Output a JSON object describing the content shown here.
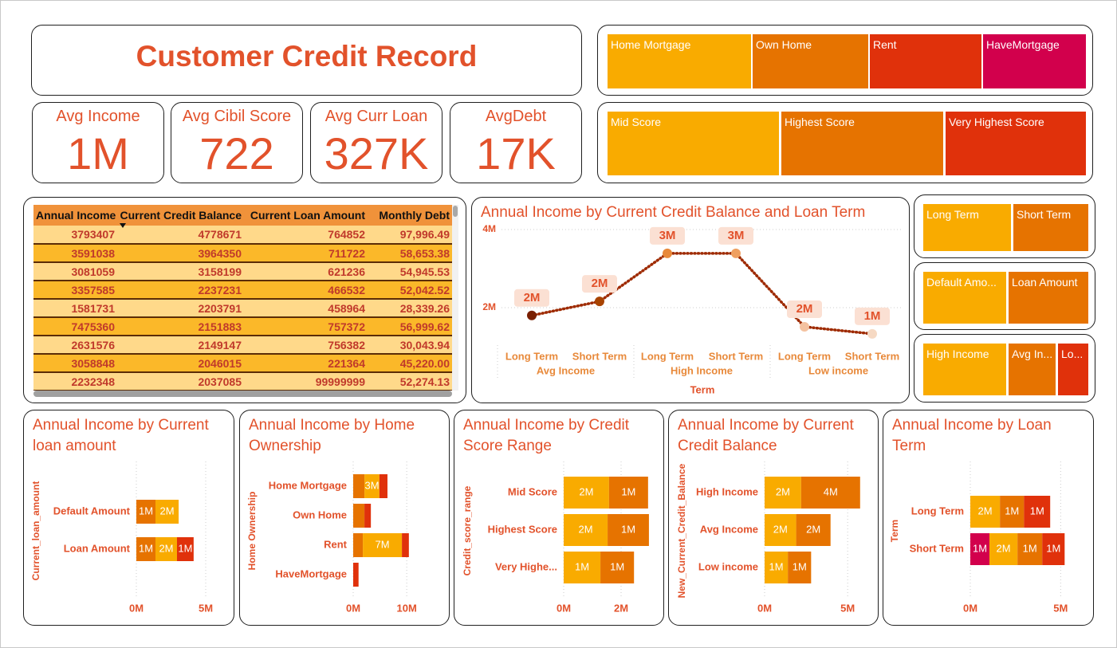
{
  "title": "Customer Credit Record",
  "kpis": [
    {
      "label": "Avg Income",
      "value": "1M"
    },
    {
      "label": "Avg Cibil Score",
      "value": "722"
    },
    {
      "label": "Avg Curr Loan",
      "value": "327K"
    },
    {
      "label": "AvgDebt",
      "value": "17K"
    }
  ],
  "slicers": [
    {
      "items": [
        {
          "label": "Home Mortgage",
          "color": "#f9ab00"
        },
        {
          "label": "Own Home",
          "color": "#e67300"
        },
        {
          "label": "Rent",
          "color": "#e0310b"
        },
        {
          "label": "HaveMortgage",
          "color": "#d2004c"
        }
      ]
    },
    {
      "items": [
        {
          "label": "Mid Score",
          "color": "#f9ab00"
        },
        {
          "label": "Highest Score",
          "color": "#e67300"
        },
        {
          "label": "Very Highest Score",
          "color": "#e0310b"
        }
      ]
    },
    {
      "items": [
        {
          "label": "Long Term",
          "color": "#f9ab00"
        },
        {
          "label": "Short Term",
          "color": "#e67300"
        }
      ]
    },
    {
      "items": [
        {
          "label": "Default Amo...",
          "color": "#f9ab00"
        },
        {
          "label": "Loan Amount",
          "color": "#e67300"
        }
      ]
    },
    {
      "items": [
        {
          "label": "High Income",
          "color": "#f9ab00"
        },
        {
          "label": "Avg In...",
          "color": "#e67300"
        },
        {
          "label": "Lo...",
          "color": "#e0310b"
        }
      ]
    }
  ],
  "table": {
    "columns": [
      "Annual Income",
      "Current Credit Balance",
      "Current Loan Amount",
      "Monthly Debt"
    ],
    "rows": [
      [
        "3793407",
        "4778671",
        "764852",
        "97,996.49"
      ],
      [
        "3591038",
        "3964350",
        "711722",
        "58,653.38"
      ],
      [
        "3081059",
        "3158199",
        "621236",
        "54,945.53"
      ],
      [
        "3357585",
        "2237231",
        "466532",
        "52,042.52"
      ],
      [
        "1581731",
        "2203791",
        "458964",
        "28,339.26"
      ],
      [
        "7475360",
        "2151883",
        "757372",
        "56,999.62"
      ],
      [
        "2631576",
        "2149147",
        "756382",
        "30,043.94"
      ],
      [
        "3058848",
        "2046015",
        "221364",
        "45,220.00"
      ],
      [
        "2232348",
        "2037085",
        "99999999",
        "52,274.13"
      ]
    ]
  },
  "chart_data": [
    {
      "type": "line",
      "title": "Annual Income by Current Credit Balance and Loan Term",
      "categories": [
        "Long Term",
        "Short Term",
        "Long Term",
        "Short Term",
        "Long Term",
        "Short Term"
      ],
      "category_groups": [
        "Avg Income",
        "High Income",
        "Low income"
      ],
      "x_label": "Term",
      "values": [
        1800000,
        2160000,
        3390000,
        3390000,
        1510000,
        1330000
      ],
      "value_labels": [
        "2M",
        "2M",
        "3M",
        "3M",
        "2M",
        "1M"
      ],
      "color": "#9e2a00",
      "point_colors": [
        "#7a1f00",
        "#a84300",
        "#e8893a",
        "#efa060",
        "#f4c2a0",
        "#f6d9c3"
      ],
      "ylim": [
        1000000,
        4000000
      ],
      "yticks": [
        {
          "value": 2000000,
          "label": "2M"
        },
        {
          "value": 4000000,
          "label": "4M"
        }
      ],
      "grid": true
    },
    {
      "type": "bar",
      "orientation": "horizontal",
      "stacked": true,
      "title": "Annual Income by Current loan amount",
      "y_label": "Current_loan_amount",
      "categories": [
        "Default Amount",
        "Loan Amount"
      ],
      "series": [
        {
          "color": "#e67300",
          "values": [
            1380000,
            1380000
          ],
          "value_labels": [
            "1M",
            "1M"
          ]
        },
        {
          "color": "#f9ab00",
          "values": [
            1670000,
            1550000
          ],
          "value_labels": [
            "2M",
            "2M"
          ]
        },
        {
          "color": "#e0310b",
          "values": [
            null,
            1200000
          ],
          "value_labels": [
            null,
            "1M"
          ]
        }
      ],
      "xlim": [
        0,
        5000000
      ],
      "xticks": [
        {
          "value": 0,
          "label": "0M"
        },
        {
          "value": 5000000,
          "label": "5M"
        }
      ],
      "grid": true
    },
    {
      "type": "bar",
      "orientation": "horizontal",
      "stacked": true,
      "title": "Annual Income by Home Ownership",
      "y_label": "Home Ownership",
      "categories": [
        "Home Mortgage",
        "Own Home",
        "Rent",
        "HaveMortgage"
      ],
      "series": [
        {
          "color": "#e67300",
          "values": [
            2100000,
            2100000,
            1800000,
            null
          ]
        },
        {
          "color": "#f9ab00",
          "values": [
            2800000,
            null,
            7300000,
            null
          ],
          "value_labels": [
            "3M",
            null,
            "7M",
            null
          ]
        },
        {
          "color": "#e0310b",
          "values": [
            1500000,
            1200000,
            1300000,
            1000000
          ]
        }
      ],
      "xlim": [
        0,
        14000000
      ],
      "xticks": [
        {
          "value": 0,
          "label": "0M"
        },
        {
          "value": 10000000,
          "label": "10M"
        }
      ],
      "grid": true
    },
    {
      "type": "bar",
      "orientation": "horizontal",
      "stacked": true,
      "title": "Annual Income by Credit Score Range",
      "y_label": "Credit_score_range",
      "categories": [
        "Mid Score",
        "Highest Score",
        "Very Highe..."
      ],
      "series": [
        {
          "color": "#f9ab00",
          "values": [
            1580000,
            1530000,
            1280000
          ],
          "value_labels": [
            "2M",
            "2M",
            "1M"
          ]
        },
        {
          "color": "#e67300",
          "values": [
            1360000,
            1440000,
            1170000
          ],
          "value_labels": [
            "1M",
            "1M",
            "1M"
          ]
        }
      ],
      "xlim": [
        0,
        3000000
      ],
      "xticks": [
        {
          "value": 0,
          "label": "0M"
        },
        {
          "value": 2000000,
          "label": "2M"
        }
      ],
      "grid": true
    },
    {
      "type": "bar",
      "orientation": "horizontal",
      "stacked": true,
      "title": "Annual Income by Current Credit Balance",
      "y_label": "New_Current_Credit_Balance",
      "categories": [
        "High Income",
        "Avg Income",
        "Low income"
      ],
      "series": [
        {
          "color": "#f9ab00",
          "values": [
            2200000,
            1900000,
            1400000
          ],
          "value_labels": [
            "2M",
            "2M",
            "1M"
          ]
        },
        {
          "color": "#e67300",
          "values": [
            3550000,
            2070000,
            1400000
          ],
          "value_labels": [
            "4M",
            "2M",
            "1M"
          ]
        }
      ],
      "xlim": [
        0,
        6000000
      ],
      "xticks": [
        {
          "value": 0,
          "label": "0M"
        },
        {
          "value": 5000000,
          "label": "5M"
        }
      ],
      "grid": true
    },
    {
      "type": "bar",
      "orientation": "horizontal",
      "stacked": true,
      "title": "Annual Income by Loan Term",
      "y_label": "Term",
      "categories": [
        "Long Term",
        "Short Term"
      ],
      "series": [
        {
          "color": "#d2004c",
          "values": [
            null,
            1060000
          ],
          "value_labels": [
            null,
            "1M"
          ]
        },
        {
          "color": "#f9ab00",
          "values": [
            1640000,
            1550000
          ],
          "value_labels": [
            "2M",
            "2M"
          ]
        },
        {
          "color": "#e67300",
          "values": [
            1330000,
            1370000
          ],
          "value_labels": [
            "1M",
            "1M"
          ]
        },
        {
          "color": "#e0310b",
          "values": [
            1450000,
            1240000
          ],
          "value_labels": [
            "1M",
            "1M"
          ]
        }
      ],
      "xlim": [
        0,
        6000000
      ],
      "xticks": [
        {
          "value": 0,
          "label": "0M"
        },
        {
          "value": 5000000,
          "label": "5M"
        }
      ],
      "grid": true
    }
  ]
}
